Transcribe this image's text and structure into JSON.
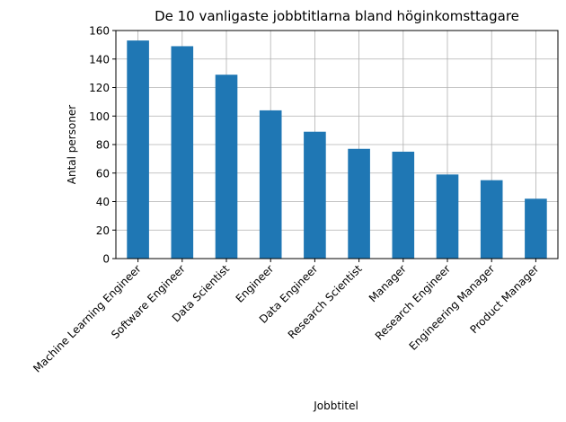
{
  "chart_data": {
    "type": "bar",
    "title": "De 10 vanligaste jobbtitlarna bland höginkomsttagare",
    "xlabel": "Jobbtitel",
    "ylabel": "Antal personer",
    "categories": [
      "Machine Learning Engineer",
      "Software Engineer",
      "Data Scientist",
      "Engineer",
      "Data Engineer",
      "Research Scientist",
      "Manager",
      "Research Engineer",
      "Engineering Manager",
      "Product Manager"
    ],
    "values": [
      153,
      149,
      129,
      104,
      89,
      77,
      75,
      59,
      55,
      42
    ],
    "ylim": [
      0,
      160
    ],
    "yticks": [
      0,
      20,
      40,
      60,
      80,
      100,
      120,
      140,
      160
    ],
    "grid": true,
    "bar_color": "#1f77b4",
    "grid_color": "#b0b0b0"
  }
}
